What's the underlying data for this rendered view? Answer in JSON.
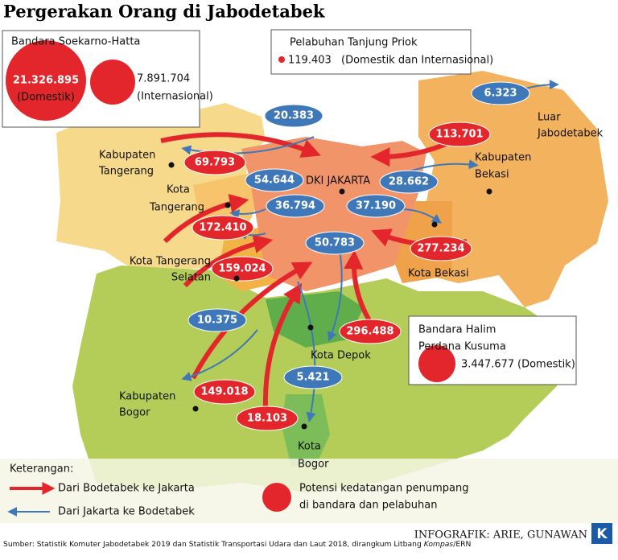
{
  "title": "Pergerakan Orang di Jabodetabek",
  "soekarno_hatta": {
    "name": "Bandara Soekarno-Hatta",
    "domestic": "21.326.895",
    "domestic_note": "(Domestik)",
    "international": "7.891.704",
    "international_note": "(Internasional)"
  },
  "tanjung_priok": {
    "name": "Pelabuhan Tanjung Priok",
    "value": "119.403",
    "note": "(Domestik dan Internasional)"
  },
  "halim": {
    "name": [
      "Bandara Halim",
      "Perdana Kusuma"
    ],
    "value": "3.447.677",
    "note": "(Domestik)"
  },
  "regions": [
    [
      "Kabupaten",
      "Tangerang"
    ],
    [
      "Kota",
      "Tangerang"
    ],
    [
      "DKI JAKARTA"
    ],
    [
      "Kabupaten",
      "Bekasi"
    ],
    [
      "Luar",
      "Jabodetabek"
    ],
    [
      "Kota Tangerang",
      "Selatan"
    ],
    [
      "Kota Bekasi"
    ],
    [
      "Kota Depok"
    ],
    [
      "Kabupaten",
      "Bogor"
    ],
    [
      "Kota",
      "Bogor"
    ]
  ],
  "flows": {
    "to_jakarta": [
      "69.793",
      "172.410",
      "159.024",
      "149.018",
      "18.103",
      "296.488",
      "277.234",
      "113.701"
    ],
    "from_jakarta": [
      "20.383",
      "54.644",
      "36.794",
      "10.375",
      "5.421",
      "50.783",
      "37.190",
      "28.662",
      "6.323"
    ]
  },
  "legend": {
    "title": "Keterangan:",
    "red_arrow": "Dari Bodetabek ke Jakarta",
    "blue_arrow": "Dari Jakarta ke Bodetabek",
    "circle": [
      "Potensi kedatangan penumpang",
      "di bandara dan pelabuhan"
    ]
  },
  "source": [
    "Sumber: Statistik Komuter Jabodetabek 2019 dan Statistik Transportasi Udara dan Laut 2018, dirangkum Litbang ",
    "Kompas",
    "/ERN"
  ],
  "credit": "INFOGRAFIK: ARIE, GUNAWAN",
  "logo": "K"
}
